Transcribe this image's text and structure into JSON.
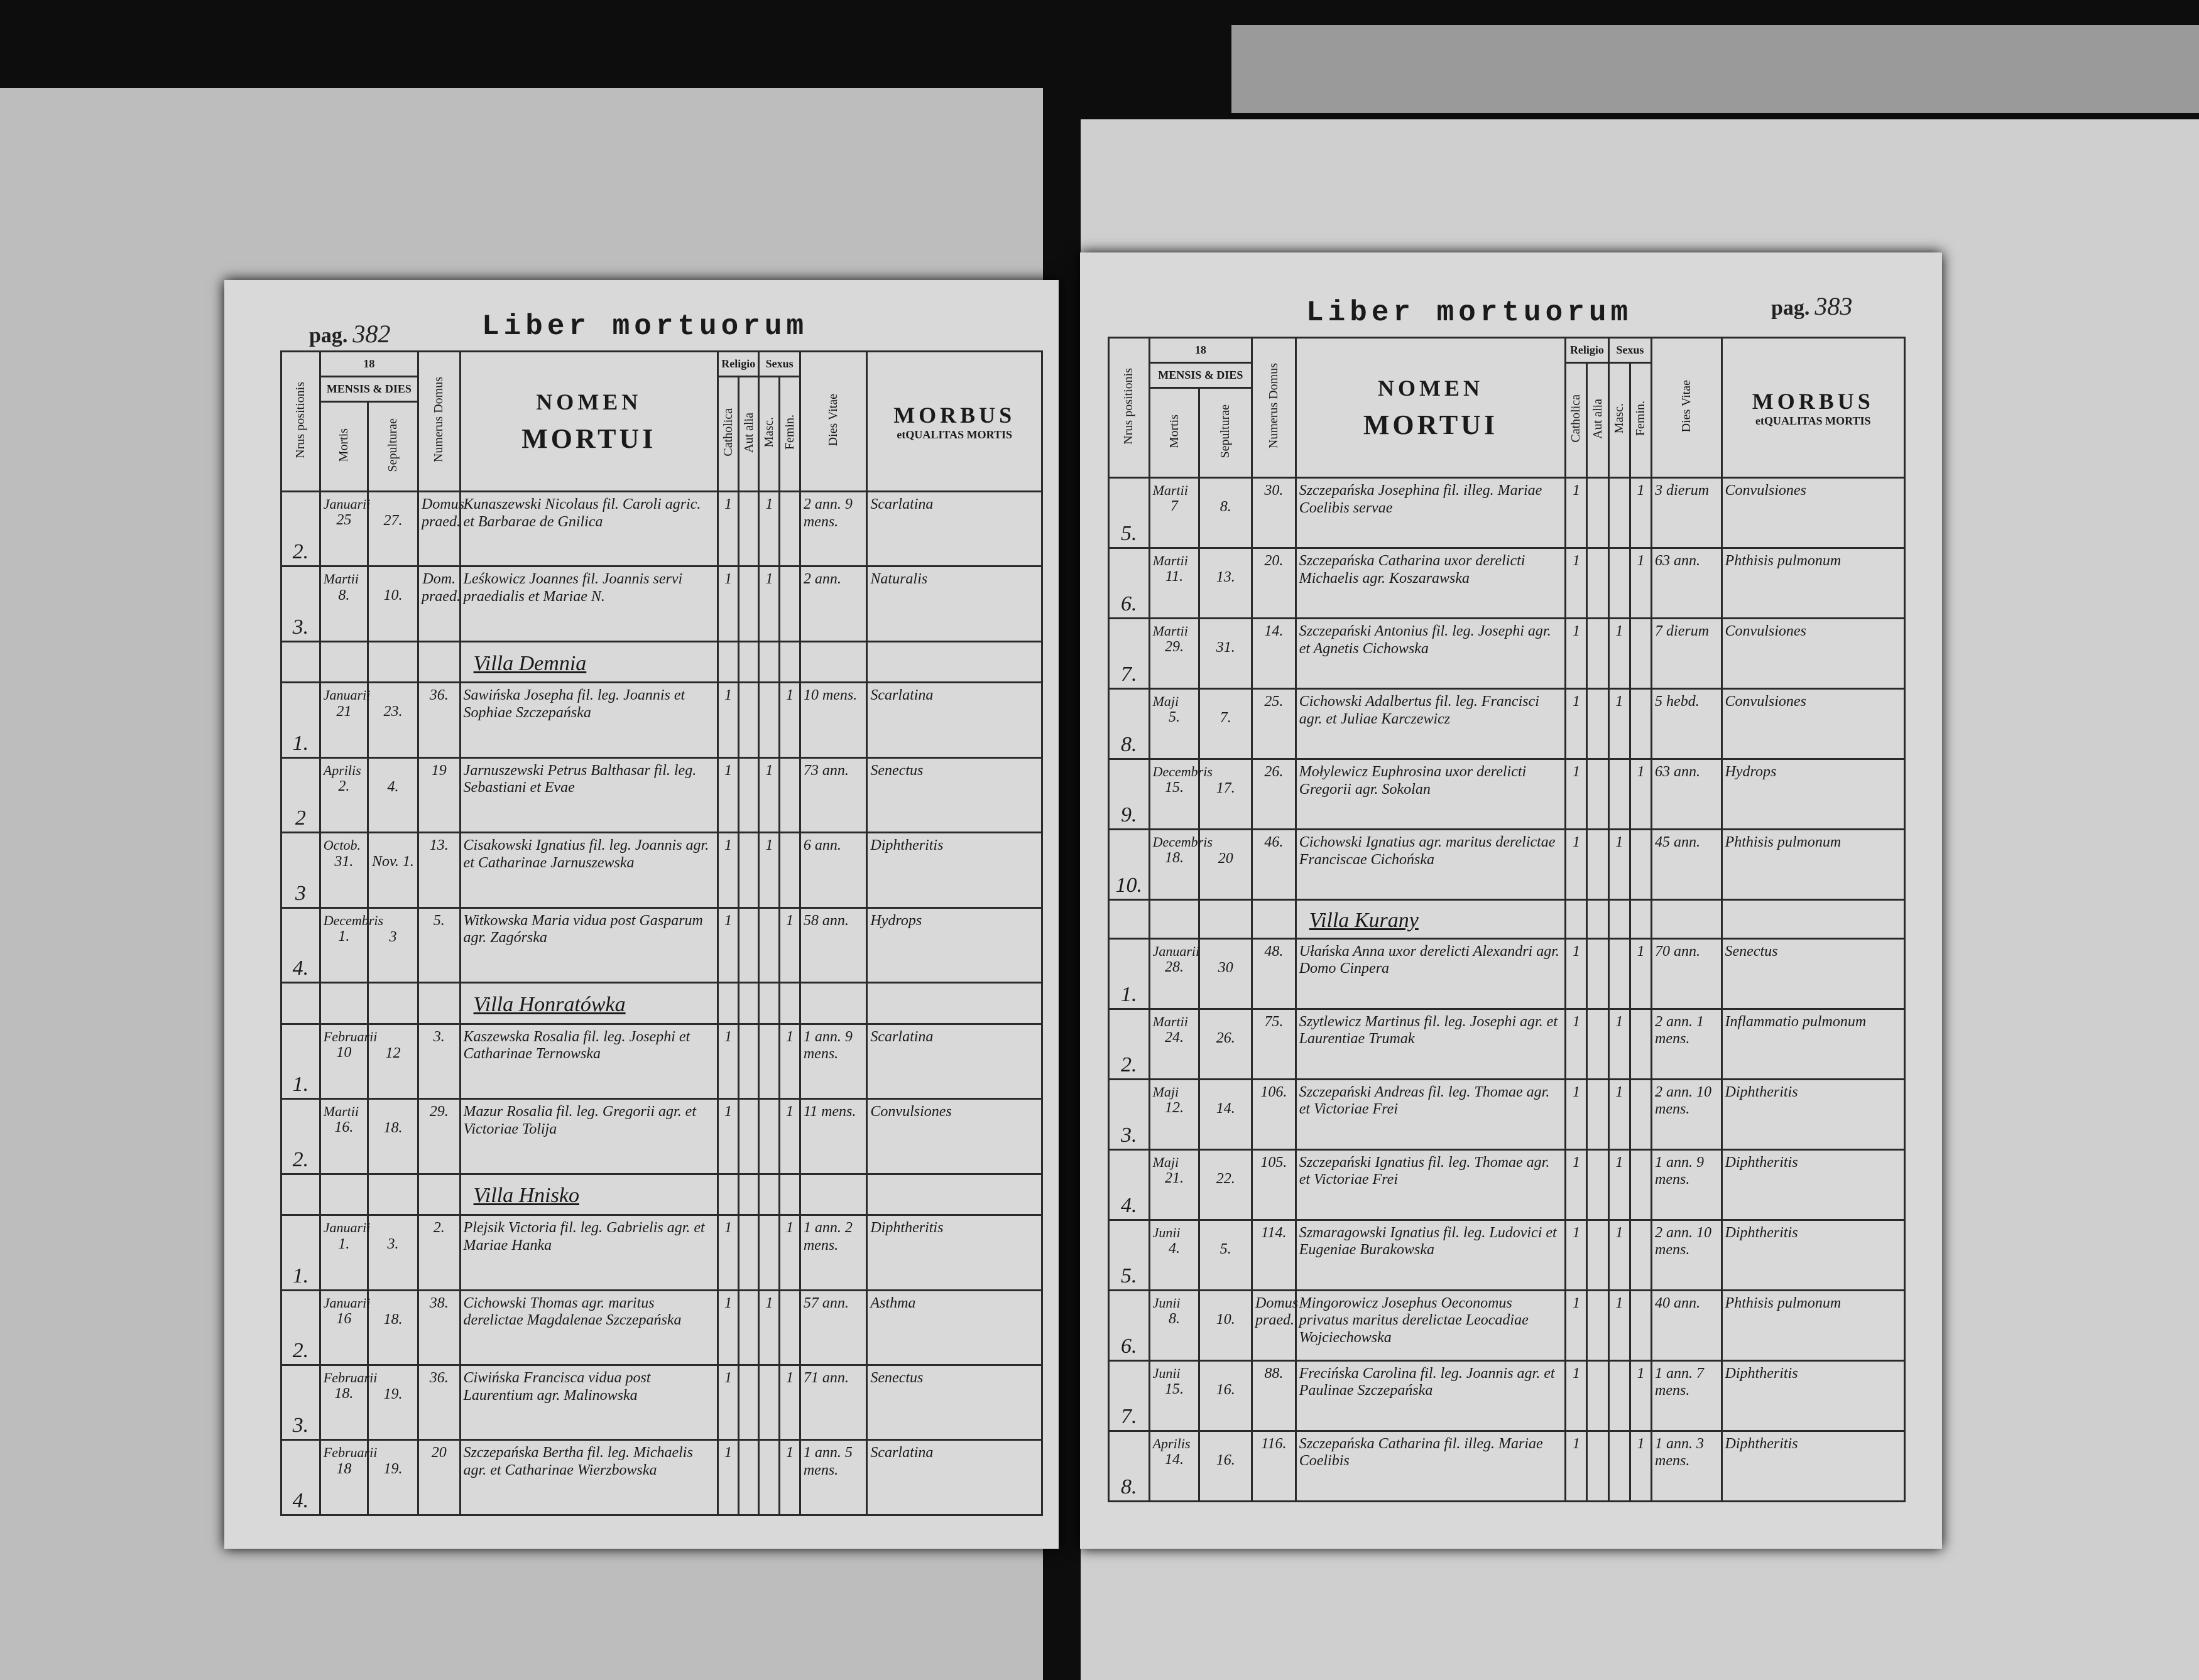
{
  "left_page": {
    "page_label": "pag.",
    "page_number": "382",
    "title": "Liber mortuorum",
    "header": {
      "nrus": "Nrus positionis",
      "year": "18",
      "mensis": "MENSIS & DIES",
      "mortis": "Mortis",
      "sepulturae": "Sepulturae",
      "domus": "Numerus Domus",
      "nomen": "NOMEN",
      "mortui": "MORTUI",
      "religio": "Religio",
      "catholica": "Catholica",
      "aut_alia": "Aut alia",
      "sexus": "Sexus",
      "masc": "Masc.",
      "femin": "Femin.",
      "dies_vitae": "Dies Vitae",
      "morbus": "MORBUS",
      "et": "et",
      "qualitas": "QUALITAS MORTIS"
    },
    "rows": [
      {
        "num": "2.",
        "month": "Januarii",
        "mortis": "25",
        "sepulturae": "27.",
        "domus": "Domus praed.",
        "name": "Kunaszewski Nicolaus fil. Caroli agric. et Barbarae de Gnilica",
        "catholica": "1",
        "masc": "1",
        "dies_vitae": "2 ann. 9 mens.",
        "morbus": "Scarlatina"
      },
      {
        "num": "3.",
        "month": "Martii",
        "mortis": "8.",
        "sepulturae": "10.",
        "domus": "Dom. praed.",
        "name": "Leśkowicz Joannes fil. Joannis servi praedialis et Mariae N.",
        "catholica": "1",
        "masc": "1",
        "dies_vitae": "2 ann.",
        "morbus": "Naturalis"
      },
      {
        "village": "Villa Demnia"
      },
      {
        "num": "1.",
        "month": "Januarii",
        "mortis": "21",
        "sepulturae": "23.",
        "domus": "36.",
        "name": "Sawińska Josepha fil. leg. Joannis et Sophiae Szczepańska",
        "catholica": "1",
        "femin": "1",
        "dies_vitae": "10 mens.",
        "morbus": "Scarlatina"
      },
      {
        "num": "2",
        "month": "Aprilis",
        "mortis": "2.",
        "sepulturae": "4.",
        "domus": "19",
        "name": "Jarnuszewski Petrus Balthasar fil. leg. Sebastiani et Evae",
        "catholica": "1",
        "masc": "1",
        "dies_vitae": "73 ann.",
        "morbus": "Senectus"
      },
      {
        "num": "3",
        "month": "Octob.",
        "mortis": "31.",
        "sepulturae": "Nov. 1.",
        "domus": "13.",
        "name": "Cisakowski Ignatius fil. leg. Joannis agr. et Catharinae Jarnuszewska",
        "catholica": "1",
        "masc": "1",
        "dies_vitae": "6 ann.",
        "morbus": "Diphtheritis"
      },
      {
        "num": "4.",
        "month": "Decembris",
        "mortis": "1.",
        "sepulturae": "3",
        "domus": "5.",
        "name": "Witkowska Maria vidua post Gasparum agr. Zagórska",
        "catholica": "1",
        "femin": "1",
        "dies_vitae": "58 ann.",
        "morbus": "Hydrops"
      },
      {
        "village": "Villa Honratówka"
      },
      {
        "num": "1.",
        "month": "Februarii",
        "mortis": "10",
        "sepulturae": "12",
        "domus": "3.",
        "name": "Kaszewska Rosalia fil. leg. Josephi et Catharinae Ternowska",
        "catholica": "1",
        "femin": "1",
        "dies_vitae": "1 ann. 9 mens.",
        "morbus": "Scarlatina"
      },
      {
        "num": "2.",
        "month": "Martii",
        "mortis": "16.",
        "sepulturae": "18.",
        "domus": "29.",
        "name": "Mazur Rosalia fil. leg. Gregorii agr. et Victoriae Tolija",
        "catholica": "1",
        "femin": "1",
        "dies_vitae": "11 mens.",
        "morbus": "Convulsiones"
      },
      {
        "village": "Villa Hnisko"
      },
      {
        "num": "1.",
        "month": "Januarii",
        "mortis": "1.",
        "sepulturae": "3.",
        "domus": "2.",
        "name": "Plejsik Victoria fil. leg. Gabrielis agr. et Mariae Hanka",
        "catholica": "1",
        "femin": "1",
        "dies_vitae": "1 ann. 2 mens.",
        "morbus": "Diphtheritis"
      },
      {
        "num": "2.",
        "month": "Januarii",
        "mortis": "16",
        "sepulturae": "18.",
        "domus": "38.",
        "name": "Cichowski Thomas agr. maritus derelictae Magdalenae Szczepańska",
        "catholica": "1",
        "masc": "1",
        "dies_vitae": "57 ann.",
        "morbus": "Asthma"
      },
      {
        "num": "3.",
        "month": "Februarii",
        "mortis": "18.",
        "sepulturae": "19.",
        "domus": "36.",
        "name": "Ciwińska Francisca vidua post Laurentium agr. Malinowska",
        "catholica": "1",
        "femin": "1",
        "dies_vitae": "71 ann.",
        "morbus": "Senectus"
      },
      {
        "num": "4.",
        "month": "Februarii",
        "mortis": "18",
        "sepulturae": "19.",
        "domus": "20",
        "name": "Szczepańska Bertha fil. leg. Michaelis agr. et Catharinae Wierzbowska",
        "catholica": "1",
        "femin": "1",
        "dies_vitae": "1 ann. 5 mens.",
        "morbus": "Scarlatina"
      }
    ]
  },
  "right_page": {
    "page_label": "pag.",
    "page_number": "383",
    "title": "Liber mortuorum",
    "header": {
      "nrus": "Nrus positionis",
      "year": "18",
      "mensis": "MENSIS & DIES",
      "mortis": "Mortis",
      "sepulturae": "Sepulturae",
      "domus": "Numerus Domus",
      "nomen": "NOMEN",
      "mortui": "MORTUI",
      "religio": "Religio",
      "catholica": "Catholica",
      "aut_alia": "Aut alia",
      "sexus": "Sexus",
      "masc": "Masc.",
      "femin": "Femin.",
      "dies_vitae": "Dies Vitae",
      "morbus": "MORBUS",
      "et": "et",
      "qualitas": "QUALITAS MORTIS"
    },
    "rows": [
      {
        "num": "5.",
        "month": "Martii",
        "mortis": "7",
        "sepulturae": "8.",
        "domus": "30.",
        "name": "Szczepańska Josephina fil. illeg. Mariae Coelibis servae",
        "catholica": "1",
        "femin": "1",
        "dies_vitae": "3 dierum",
        "morbus": "Convulsiones"
      },
      {
        "num": "6.",
        "month": "Martii",
        "mortis": "11.",
        "sepulturae": "13.",
        "domus": "20.",
        "name": "Szczepańska Catharina uxor derelicti Michaelis agr. Koszarawska",
        "catholica": "1",
        "femin": "1",
        "dies_vitae": "63 ann.",
        "morbus": "Phthisis pulmonum"
      },
      {
        "num": "7.",
        "month": "Martii",
        "mortis": "29.",
        "sepulturae": "31.",
        "domus": "14.",
        "name": "Szczepański Antonius fil. leg. Josephi agr. et Agnetis Cichowska",
        "catholica": "1",
        "masc": "1",
        "dies_vitae": "7 dierum",
        "morbus": "Convulsiones"
      },
      {
        "num": "8.",
        "month": "Maji",
        "mortis": "5.",
        "sepulturae": "7.",
        "domus": "25.",
        "name": "Cichowski Adalbertus fil. leg. Francisci agr. et Juliae Karczewicz",
        "catholica": "1",
        "masc": "1",
        "dies_vitae": "5 hebd.",
        "morbus": "Convulsiones"
      },
      {
        "num": "9.",
        "month": "Decembris",
        "mortis": "15.",
        "sepulturae": "17.",
        "domus": "26.",
        "name": "Mołylewicz Euphrosina uxor derelicti Gregorii agr. Sokolan",
        "catholica": "1",
        "femin": "1",
        "dies_vitae": "63 ann.",
        "morbus": "Hydrops"
      },
      {
        "num": "10.",
        "month": "Decembris",
        "mortis": "18.",
        "sepulturae": "20",
        "domus": "46.",
        "name": "Cichowski Ignatius agr. maritus derelictae Franciscae Cichońska",
        "catholica": "1",
        "masc": "1",
        "dies_vitae": "45 ann.",
        "morbus": "Phthisis pulmonum"
      },
      {
        "village": "Villa Kurany"
      },
      {
        "num": "1.",
        "month": "Januarii",
        "mortis": "28.",
        "sepulturae": "30",
        "domus": "48.",
        "name": "Ułańska Anna uxor derelicti Alexandri agr. Domo Cinpera",
        "catholica": "1",
        "femin": "1",
        "dies_vitae": "70 ann.",
        "morbus": "Senectus"
      },
      {
        "num": "2.",
        "month": "Martii",
        "mortis": "24.",
        "sepulturae": "26.",
        "domus": "75.",
        "name": "Szytlewicz Martinus fil. leg. Josephi agr. et Laurentiae Trumak",
        "catholica": "1",
        "masc": "1",
        "dies_vitae": "2 ann. 1 mens.",
        "morbus": "Inflammatio pulmonum"
      },
      {
        "num": "3.",
        "month": "Maji",
        "mortis": "12.",
        "sepulturae": "14.",
        "domus": "106.",
        "name": "Szczepański Andreas fil. leg. Thomae agr. et Victoriae Frei",
        "catholica": "1",
        "masc": "1",
        "dies_vitae": "2 ann. 10 mens.",
        "morbus": "Diphtheritis"
      },
      {
        "num": "4.",
        "month": "Maji",
        "mortis": "21.",
        "sepulturae": "22.",
        "domus": "105.",
        "name": "Szczepański Ignatius fil. leg. Thomae agr. et Victoriae Frei",
        "catholica": "1",
        "masc": "1",
        "dies_vitae": "1 ann. 9 mens.",
        "morbus": "Diphtheritis"
      },
      {
        "num": "5.",
        "month": "Junii",
        "mortis": "4.",
        "sepulturae": "5.",
        "domus": "114.",
        "name": "Szmaragowski Ignatius fil. leg. Ludovici et Eugeniae Burakowska",
        "catholica": "1",
        "masc": "1",
        "dies_vitae": "2 ann. 10 mens.",
        "morbus": "Diphtheritis"
      },
      {
        "num": "6.",
        "month": "Junii",
        "mortis": "8.",
        "sepulturae": "10.",
        "domus": "Domus praed.",
        "name": "Mingorowicz Josephus Oeconomus privatus maritus derelictae Leocadiae Wojciechowska",
        "catholica": "1",
        "masc": "1",
        "dies_vitae": "40 ann.",
        "morbus": "Phthisis pulmonum"
      },
      {
        "num": "7.",
        "month": "Junii",
        "mortis": "15.",
        "sepulturae": "16.",
        "domus": "88.",
        "name": "Frecińska Carolina fil. leg. Joannis agr. et Paulinae Szczepańska",
        "catholica": "1",
        "femin": "1",
        "dies_vitae": "1 ann. 7 mens.",
        "morbus": "Diphtheritis"
      },
      {
        "num": "8.",
        "month": "Aprilis",
        "mortis": "14.",
        "sepulturae": "16.",
        "domus": "116.",
        "name": "Szczepańska Catharina fil. illeg. Mariae Coelibis",
        "catholica": "1",
        "femin": "1",
        "dies_vitae": "1 ann. 3 mens.",
        "morbus": "Diphtheritis"
      }
    ]
  }
}
